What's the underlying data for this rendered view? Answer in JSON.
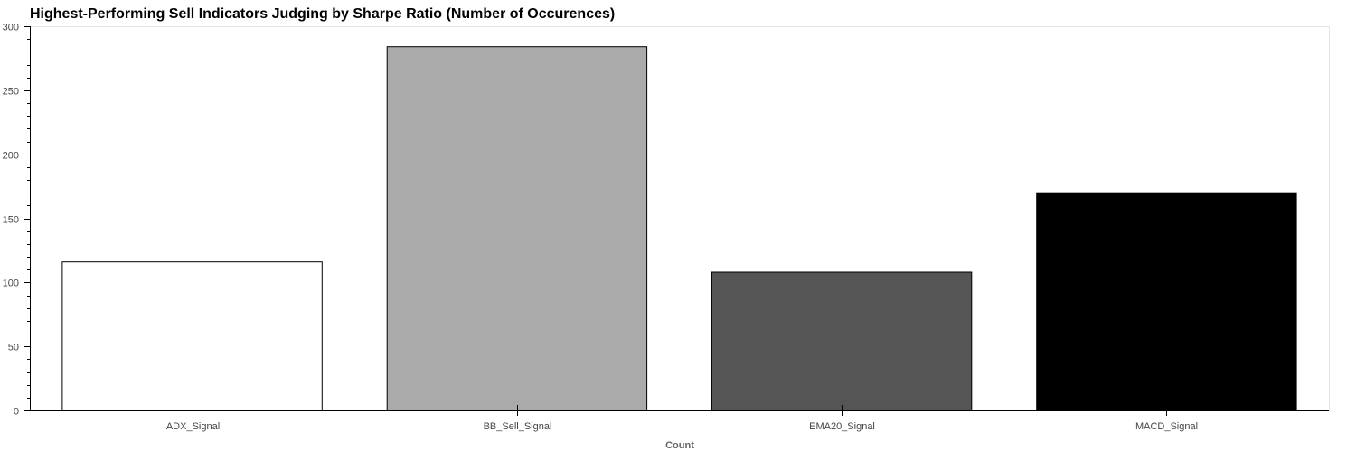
{
  "chart_data": {
    "type": "bar",
    "title": "Highest-Performing Sell Indicators Judging by Sharpe Ratio (Number of Occurences)",
    "xlabel": "Count",
    "ylabel": "",
    "categories": [
      "ADX_Signal",
      "BB_Sell_Signal",
      "EMA20_Signal",
      "MACD_Signal"
    ],
    "values": [
      116,
      284,
      108,
      170
    ],
    "colors": [
      "#ffffff",
      "#aaaaaa",
      "#555555",
      "#000000"
    ],
    "ylim": [
      0,
      300
    ],
    "yticks": [
      0,
      50,
      100,
      150,
      200,
      250,
      300
    ],
    "grid": false,
    "legend": "none"
  }
}
